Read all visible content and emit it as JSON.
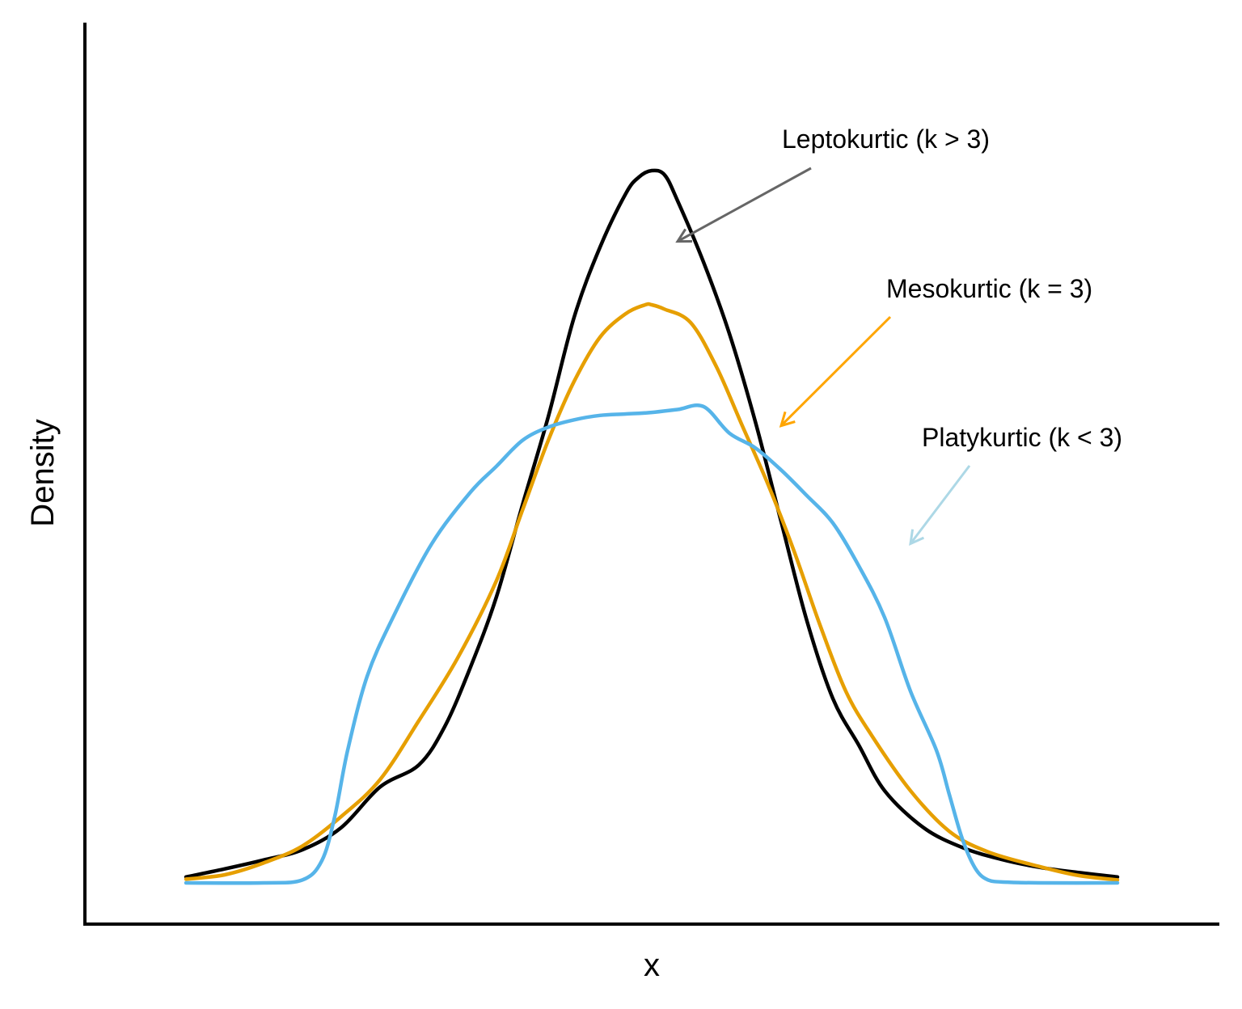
{
  "chart_data": {
    "type": "line",
    "xlabel": "x",
    "ylabel": "Density",
    "grid": false,
    "axes_ticks": false,
    "x_domain": [
      -4,
      4
    ],
    "y_domain": [
      0,
      1
    ],
    "series": [
      {
        "key": "lepto",
        "color": "#000000",
        "x": [
          -3.6,
          -3.3,
          -3.0,
          -2.7,
          -2.4,
          -2.1,
          -1.8,
          -1.6,
          -1.4,
          -1.2,
          -1.0,
          -0.8,
          -0.6,
          -0.4,
          -0.2,
          -0.1,
          0.0,
          0.1,
          0.2,
          0.4,
          0.6,
          0.8,
          1.0,
          1.2,
          1.4,
          1.6,
          1.8,
          2.1,
          2.4,
          2.7,
          3.0,
          3.3,
          3.6
        ],
        "y": [
          0.008,
          0.019,
          0.031,
          0.045,
          0.075,
          0.13,
          0.16,
          0.212,
          0.293,
          0.388,
          0.512,
          0.632,
          0.767,
          0.862,
          0.935,
          0.957,
          0.966,
          0.96,
          0.925,
          0.842,
          0.745,
          0.626,
          0.49,
          0.355,
          0.25,
          0.187,
          0.125,
          0.075,
          0.048,
          0.032,
          0.021,
          0.014,
          0.008
        ]
      },
      {
        "key": "meso",
        "color": "#E69F00",
        "x": [
          -3.6,
          -3.3,
          -3.0,
          -2.7,
          -2.4,
          -2.1,
          -1.8,
          -1.5,
          -1.2,
          -1.0,
          -0.8,
          -0.6,
          -0.4,
          -0.2,
          -0.05,
          0.0,
          0.1,
          0.3,
          0.5,
          0.7,
          0.9,
          1.1,
          1.3,
          1.5,
          1.7,
          2.0,
          2.3,
          2.6,
          3.0,
          3.3,
          3.6
        ],
        "y": [
          0.005,
          0.011,
          0.027,
          0.05,
          0.09,
          0.14,
          0.22,
          0.305,
          0.41,
          0.505,
          0.6,
          0.68,
          0.74,
          0.772,
          0.784,
          0.784,
          0.778,
          0.76,
          0.7,
          0.62,
          0.54,
          0.45,
          0.35,
          0.26,
          0.2,
          0.125,
          0.07,
          0.042,
          0.022,
          0.01,
          0.004
        ]
      },
      {
        "key": "platy",
        "color": "#56B4E9",
        "x": [
          -3.6,
          -3.0,
          -2.7,
          -2.55,
          -2.45,
          -2.35,
          -2.2,
          -2.0,
          -1.7,
          -1.4,
          -1.2,
          -1.0,
          -0.8,
          -0.6,
          -0.4,
          -0.2,
          0.0,
          0.2,
          0.4,
          0.6,
          0.8,
          1.0,
          1.2,
          1.4,
          1.6,
          1.8,
          2.0,
          2.2,
          2.3,
          2.4,
          2.5,
          2.6,
          2.75,
          3.0,
          3.6
        ],
        "y": [
          0.0,
          0.0,
          0.004,
          0.03,
          0.09,
          0.18,
          0.28,
          0.36,
          0.46,
          0.53,
          0.565,
          0.6,
          0.618,
          0.628,
          0.634,
          0.636,
          0.638,
          0.642,
          0.646,
          0.61,
          0.59,
          0.56,
          0.525,
          0.488,
          0.43,
          0.36,
          0.26,
          0.18,
          0.12,
          0.06,
          0.02,
          0.004,
          0.001,
          0.0,
          0.0
        ]
      }
    ],
    "annotations": [
      {
        "text": "Leptokurtic (k > 3)",
        "series": "lepto",
        "arrow_color": "#666666",
        "arrow_target": [
          0.2,
          0.87
        ]
      },
      {
        "text": "Mesokurtic (k = 3)",
        "series": "meso",
        "arrow_color": "#FFA500",
        "arrow_target": [
          1.0,
          0.62
        ]
      },
      {
        "text": "Platykurtic (k < 3)",
        "series": "platy",
        "arrow_color": "#ADD8E6",
        "arrow_target": [
          2.0,
          0.46
        ]
      }
    ]
  }
}
